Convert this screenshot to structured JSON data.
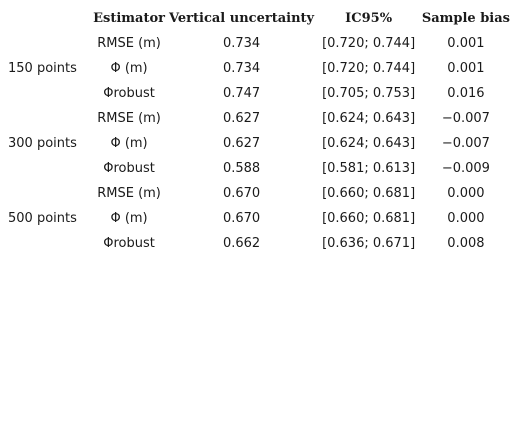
{
  "headers": {
    "group": "",
    "estimator": "Estimator",
    "vertical_uncertainty": "Vertical uncertainty",
    "ic95": "IC95%",
    "sample_bias": "Sample bias"
  },
  "rows": [
    {
      "group": "",
      "estimator": "RMSE (m)",
      "vu": "0.734",
      "ic": "[0.720; 0.744]",
      "sb": "0.001"
    },
    {
      "group": "150 points",
      "estimator": "Φ (m)",
      "vu": "0.734",
      "ic": "[0.720; 0.744]",
      "sb": "0.001"
    },
    {
      "group": "",
      "estimator": "Φrobust",
      "vu": "0.747",
      "ic": "[0.705; 0.753]",
      "sb": "0.016"
    },
    {
      "group": "",
      "estimator": "RMSE (m)",
      "vu": "0.627",
      "ic": "[0.624; 0.643]",
      "sb": "−0.007"
    },
    {
      "group": "300 points",
      "estimator": "Φ (m)",
      "vu": "0.627",
      "ic": "[0.624; 0.643]",
      "sb": "−0.007"
    },
    {
      "group": "",
      "estimator": "Φrobust",
      "vu": "0.588",
      "ic": "[0.581; 0.613]",
      "sb": "−0.009"
    },
    {
      "group": "",
      "estimator": "RMSE (m)",
      "vu": "0.670",
      "ic": "[0.660; 0.681]",
      "sb": "0.000"
    },
    {
      "group": "500 points",
      "estimator": "Φ (m)",
      "vu": "0.670",
      "ic": "[0.660; 0.681]",
      "sb": "0.000"
    },
    {
      "group": "",
      "estimator": "Φrobust",
      "vu": "0.662",
      "ic": "[0.636; 0.671]",
      "sb": "0.008"
    }
  ]
}
